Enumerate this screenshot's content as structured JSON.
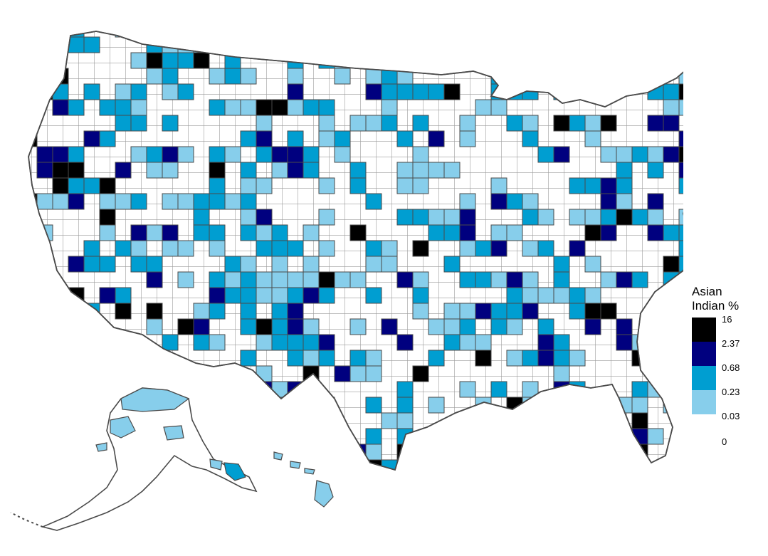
{
  "legend": {
    "title_line1": "Asian",
    "title_line2": "Indian %",
    "breaks": [
      "16",
      "2.37",
      "0.68",
      "0.23",
      "0.03",
      "0"
    ],
    "classes": [
      {
        "range": "2.37–16",
        "color": "#000000"
      },
      {
        "range": "0.68–2.37",
        "color": "#00007f"
      },
      {
        "range": "0.23–0.68",
        "color": "#009ed1"
      },
      {
        "range": "0.03–0.23",
        "color": "#87ceeb"
      },
      {
        "range": "0–0.03",
        "color": "#ffffff"
      }
    ]
  },
  "colors": {
    "county_border": "#4a4a4a",
    "background": "#ffffff"
  },
  "regions": [
    {
      "name": "contiguous-us",
      "class": "none"
    },
    {
      "name": "alaska",
      "class": "none"
    },
    {
      "name": "hawaii",
      "class": "low"
    }
  ]
}
